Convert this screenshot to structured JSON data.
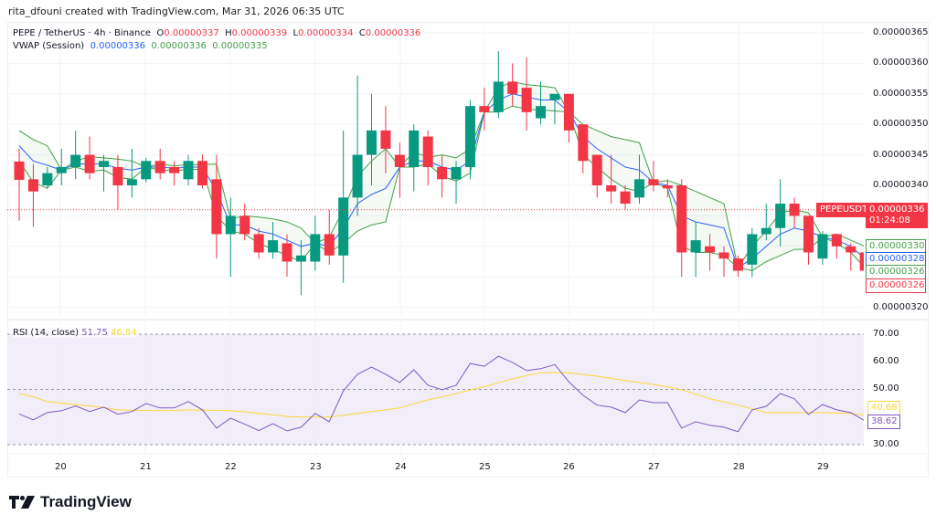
{
  "credit": "rita_dfouni created with TradingView.com, Mar 31, 2026 06:35 UTC",
  "legend": {
    "symbol": "PEPE / TetherUS · 4h · Binance",
    "o_label": "O",
    "o": "0.00000337",
    "h_label": "H",
    "h": "0.00000339",
    "l_label": "L",
    "l": "0.00000334",
    "c_label": "C",
    "c": "0.00000336",
    "vwap_label": "VWAP (Session)",
    "vwap": "0.00000336",
    "vwap_upper": "0.00000336",
    "vwap_lower": "0.00000335"
  },
  "rsi_legend": {
    "label": "RSI (14, close)",
    "rsi": "51.75",
    "ma": "46.84"
  },
  "price_axis": [
    "0.00000365",
    "0.00000360",
    "0.00000355",
    "0.00000350",
    "0.00000345",
    "0.00000340",
    "0.00000330",
    "0.00000320"
  ],
  "price_tags": {
    "symbol": "PEPEUSDT",
    "last": "0.00000336",
    "countdown": "01:24:08",
    "vwap_upper": "0.00000330",
    "vwap": "0.00000328",
    "vwap_lower": "0.00000326",
    "last_candle": "0.00000326"
  },
  "rsi_axis": [
    "70.00",
    "60.00",
    "50.00",
    "30.00"
  ],
  "rsi_tags": {
    "ma": "40.68",
    "rsi": "38.62"
  },
  "time_axis": [
    "20",
    "21",
    "22",
    "23",
    "24",
    "25",
    "26",
    "27",
    "28",
    "29"
  ],
  "logo": "TradingView",
  "colors": {
    "up": "#089981",
    "down": "#f23645",
    "vwap": "#2962ff",
    "bands": "#43a047",
    "rsi": "#7e57c2",
    "rsi_ma": "#fdd835",
    "rsi_bg": "#ede7f6"
  },
  "chart_data": {
    "type": "candlestick",
    "symbol": "PEPEUSDT",
    "interval": "4h",
    "ylim": [
      3.18e-06,
      3.66e-06
    ],
    "current_price": 3.36e-06,
    "ohlc": [
      [
        3.439e-06,
        3.46e-06,
        3.342e-06,
        3.409e-06
      ],
      [
        3.41e-06,
        3.435e-06,
        3.332e-06,
        3.39e-06
      ],
      [
        3.4e-06,
        3.43e-06,
        3.395e-06,
        3.42e-06
      ],
      [
        3.42e-06,
        3.46e-06,
        3.4e-06,
        3.43e-06
      ],
      [
        3.43e-06,
        3.49e-06,
        3.41e-06,
        3.45e-06
      ],
      [
        3.45e-06,
        3.48e-06,
        3.41e-06,
        3.42e-06
      ],
      [
        3.43e-06,
        3.45e-06,
        3.39e-06,
        3.44e-06
      ],
      [
        3.43e-06,
        3.45e-06,
        3.36e-06,
        3.4e-06
      ],
      [
        3.4e-06,
        3.46e-06,
        3.38e-06,
        3.41e-06
      ],
      [
        3.41e-06,
        3.445e-06,
        3.405e-06,
        3.44e-06
      ],
      [
        3.44e-06,
        3.46e-06,
        3.41e-06,
        3.42e-06
      ],
      [
        3.43e-06,
        3.44e-06,
        3.4e-06,
        3.42e-06
      ],
      [
        3.41e-06,
        3.45e-06,
        3.4e-06,
        3.44e-06
      ],
      [
        3.44e-06,
        3.45e-06,
        3.395e-06,
        3.4e-06
      ],
      [
        3.41e-06,
        3.45e-06,
        3.28e-06,
        3.32e-06
      ],
      [
        3.32e-06,
        3.38e-06,
        3.25e-06,
        3.35e-06
      ],
      [
        3.35e-06,
        3.37e-06,
        3.31e-06,
        3.32e-06
      ],
      [
        3.32e-06,
        3.33e-06,
        3.28e-06,
        3.29e-06
      ],
      [
        3.29e-06,
        3.34e-06,
        3.28e-06,
        3.31e-06
      ],
      [
        3.305e-06,
        3.32e-06,
        3.25e-06,
        3.275e-06
      ],
      [
        3.275e-06,
        3.31e-06,
        3.22e-06,
        3.285e-06
      ],
      [
        3.275e-06,
        3.35e-06,
        3.26e-06,
        3.32e-06
      ],
      [
        3.32e-06,
        3.36e-06,
        3.27e-06,
        3.285e-06
      ],
      [
        3.285e-06,
        3.49e-06,
        3.24e-06,
        3.38e-06
      ],
      [
        3.38e-06,
        3.58e-06,
        3.35e-06,
        3.45e-06
      ],
      [
        3.45e-06,
        3.55e-06,
        3.4e-06,
        3.49e-06
      ],
      [
        3.49e-06,
        3.53e-06,
        3.42e-06,
        3.46e-06
      ],
      [
        3.45e-06,
        3.47e-06,
        3.38e-06,
        3.43e-06
      ],
      [
        3.43e-06,
        3.5e-06,
        3.39e-06,
        3.49e-06
      ],
      [
        3.48e-06,
        3.49e-06,
        3.4e-06,
        3.43e-06
      ],
      [
        3.43e-06,
        3.45e-06,
        3.38e-06,
        3.41e-06
      ],
      [
        3.41e-06,
        3.44e-06,
        3.37e-06,
        3.43e-06
      ],
      [
        3.43e-06,
        3.54e-06,
        3.41e-06,
        3.53e-06
      ],
      [
        3.53e-06,
        3.56e-06,
        3.49e-06,
        3.52e-06
      ],
      [
        3.52e-06,
        3.62e-06,
        3.51e-06,
        3.57e-06
      ],
      [
        3.57e-06,
        3.6e-06,
        3.53e-06,
        3.55e-06
      ],
      [
        3.56e-06,
        3.61e-06,
        3.49e-06,
        3.52e-06
      ],
      [
        3.51e-06,
        3.57e-06,
        3.5e-06,
        3.53e-06
      ],
      [
        3.54e-06,
        3.55e-06,
        3.5e-06,
        3.55e-06
      ],
      [
        3.55e-06,
        3.55e-06,
        3.47e-06,
        3.49e-06
      ],
      [
        3.5e-06,
        3.5e-06,
        3.42e-06,
        3.44e-06
      ],
      [
        3.45e-06,
        3.45e-06,
        3.38e-06,
        3.4e-06
      ],
      [
        3.4e-06,
        3.45e-06,
        3.37e-06,
        3.39e-06
      ],
      [
        3.39e-06,
        3.4e-06,
        3.36e-06,
        3.37e-06
      ],
      [
        3.38e-06,
        3.45e-06,
        3.37e-06,
        3.41e-06
      ],
      [
        3.41e-06,
        3.44e-06,
        3.39e-06,
        3.4e-06
      ],
      [
        3.4e-06,
        3.41e-06,
        3.38e-06,
        3.395e-06
      ],
      [
        3.4e-06,
        3.41e-06,
        3.25e-06,
        3.29e-06
      ],
      [
        3.29e-06,
        3.34e-06,
        3.25e-06,
        3.31e-06
      ],
      [
        3.3e-06,
        3.32e-06,
        3.26e-06,
        3.29e-06
      ],
      [
        3.29e-06,
        3.3e-06,
        3.25e-06,
        3.28e-06
      ],
      [
        3.28e-06,
        3.285e-06,
        3.25e-06,
        3.26e-06
      ],
      [
        3.27e-06,
        3.33e-06,
        3.25e-06,
        3.32e-06
      ],
      [
        3.32e-06,
        3.37e-06,
        3.31e-06,
        3.33e-06
      ],
      [
        3.33e-06,
        3.41e-06,
        3.3e-06,
        3.37e-06
      ],
      [
        3.37e-06,
        3.38e-06,
        3.33e-06,
        3.35e-06
      ],
      [
        3.35e-06,
        3.35e-06,
        3.27e-06,
        3.29e-06
      ],
      [
        3.28e-06,
        3.325e-06,
        3.27e-06,
        3.32e-06
      ],
      [
        3.32e-06,
        3.32e-06,
        3.28e-06,
        3.3e-06
      ],
      [
        3.3e-06,
        3.305e-06,
        3.26e-06,
        3.29e-06
      ],
      [
        3.29e-06,
        3.3e-06,
        3.22e-06,
        3.26e-06
      ]
    ],
    "vwap": [
      3.465e-06,
      3.44e-06,
      3.433e-06,
      3.425e-06,
      3.435e-06,
      3.435e-06,
      3.435e-06,
      3.428e-06,
      3.425e-06,
      3.43e-06,
      3.43e-06,
      3.428e-06,
      3.43e-06,
      3.43e-06,
      3.39e-06,
      3.335e-06,
      3.335e-06,
      3.325e-06,
      3.32e-06,
      3.31e-06,
      3.3e-06,
      3.305e-06,
      3.3e-06,
      3.33e-06,
      3.37e-06,
      3.385e-06,
      3.395e-06,
      3.43e-06,
      3.44e-06,
      3.44e-06,
      3.43e-06,
      3.425e-06,
      3.44e-06,
      3.52e-06,
      3.54e-06,
      3.55e-06,
      3.545e-06,
      3.54e-06,
      3.54e-06,
      3.52e-06,
      3.48e-06,
      3.46e-06,
      3.445e-06,
      3.43e-06,
      3.425e-06,
      3.405e-06,
      3.4e-06,
      3.35e-06,
      3.34e-06,
      3.335e-06,
      3.33e-06,
      3.265e-06,
      3.28e-06,
      3.3e-06,
      3.32e-06,
      3.33e-06,
      3.325e-06,
      3.315e-06,
      3.31e-06,
      3.3e-06,
      3.28e-06
    ],
    "vwap_upper": [
      3.49e-06,
      3.475e-06,
      3.465e-06,
      3.425e-06,
      3.44e-06,
      3.447e-06,
      3.445e-06,
      3.443e-06,
      3.44e-06,
      3.43e-06,
      3.435e-06,
      3.432e-06,
      3.434e-06,
      3.434e-06,
      3.435e-06,
      3.345e-06,
      3.35e-06,
      3.348e-06,
      3.345e-06,
      3.34e-06,
      3.33e-06,
      3.305e-06,
      3.315e-06,
      3.36e-06,
      3.415e-06,
      3.44e-06,
      3.46e-06,
      3.43e-06,
      3.455e-06,
      3.446e-06,
      3.45e-06,
      3.445e-06,
      3.46e-06,
      3.52e-06,
      3.56e-06,
      3.57e-06,
      3.565e-06,
      3.563e-06,
      3.56e-06,
      3.52e-06,
      3.5e-06,
      3.49e-06,
      3.48e-06,
      3.475e-06,
      3.47e-06,
      3.405e-06,
      3.408e-06,
      3.4e-06,
      3.39e-06,
      3.38e-06,
      3.37e-06,
      3.265e-06,
      3.3e-06,
      3.325e-06,
      3.355e-06,
      3.36e-06,
      3.355e-06,
      3.315e-06,
      3.32e-06,
      3.31e-06,
      3.3e-06
    ],
    "vwap_lower": [
      3.44e-06,
      3.405e-06,
      3.395e-06,
      3.425e-06,
      3.43e-06,
      3.423e-06,
      3.425e-06,
      3.413e-06,
      3.41e-06,
      3.43e-06,
      3.425e-06,
      3.424e-06,
      3.426e-06,
      3.426e-06,
      3.35e-06,
      3.325e-06,
      3.32e-06,
      3.305e-06,
      3.295e-06,
      3.285e-06,
      3.275e-06,
      3.305e-06,
      3.29e-06,
      3.305e-06,
      3.325e-06,
      3.335e-06,
      3.34e-06,
      3.43e-06,
      3.43e-06,
      3.435e-06,
      3.415e-06,
      3.407e-06,
      3.42e-06,
      3.52e-06,
      3.52e-06,
      3.53e-06,
      3.525e-06,
      3.523e-06,
      3.522e-06,
      3.52e-06,
      3.45e-06,
      3.43e-06,
      3.41e-06,
      3.395e-06,
      3.39e-06,
      3.405e-06,
      3.395e-06,
      3.3e-06,
      3.29e-06,
      3.29e-06,
      3.285e-06,
      3.265e-06,
      3.26e-06,
      3.275e-06,
      3.285e-06,
      3.295e-06,
      3.295e-06,
      3.315e-06,
      3.305e-06,
      3.29e-06,
      3.265e-06
    ],
    "rsi": [
      41.1,
      39,
      41.6,
      42.3,
      44,
      42,
      43.6,
      41,
      42,
      44.9,
      43.3,
      43.3,
      45.6,
      42.6,
      36,
      39.6,
      37.4,
      35.1,
      37.6,
      35,
      36.3,
      41.3,
      38.3,
      49.5,
      55.5,
      58.1,
      55.5,
      52.5,
      57.1,
      51.5,
      49.9,
      51.5,
      59.4,
      58.4,
      62,
      59.8,
      56.8,
      57.5,
      59,
      52.7,
      47.9,
      44.3,
      43.6,
      41.6,
      46.2,
      45.2,
      45.2,
      36,
      38.3,
      37,
      36.3,
      34.7,
      42.6,
      43.9,
      48.5,
      46.6,
      40.9,
      44.5,
      42.6,
      41.6,
      38.62
    ],
    "rsi_ma": [
      48.5,
      47.3,
      45.6,
      45,
      44.5,
      44,
      43.5,
      42.6,
      42.5,
      42.4,
      42.3,
      42.4,
      42.6,
      42.5,
      42.4,
      42.3,
      41.9,
      41.3,
      40.8,
      40.2,
      40,
      40,
      40,
      40.6,
      41.3,
      42,
      42.6,
      43.3,
      44.8,
      46.2,
      47.3,
      48.5,
      49.8,
      51,
      52.4,
      53.8,
      55,
      56,
      56.1,
      56,
      55.4,
      54.8,
      54,
      53.2,
      52.5,
      51.8,
      50.9,
      49.9,
      48.3,
      46.6,
      45.5,
      44.3,
      43,
      41.6,
      41.6,
      41.6,
      41.6,
      41.6,
      41.5,
      41.3,
      40.68
    ],
    "rsi_levels": [
      70,
      50,
      30
    ],
    "rsi_ylim": [
      30,
      70
    ],
    "grid": true
  }
}
